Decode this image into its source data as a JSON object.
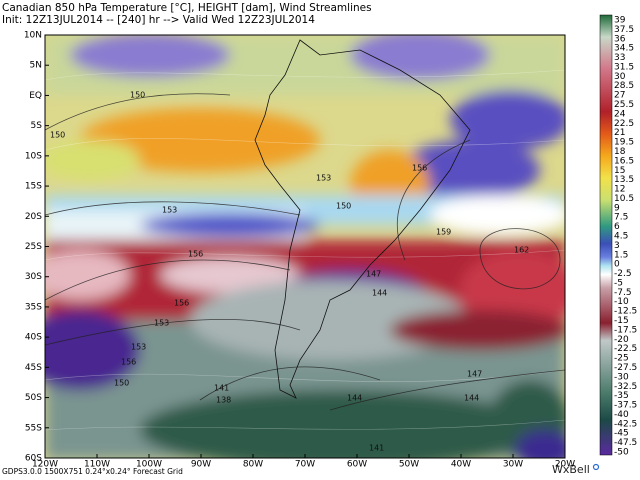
{
  "header": {
    "line1": "Canadian 850 hPa Temperature [°C], HEIGHT [dam], Wind Streamlines",
    "line2": "Init: 12Z13JUL2014 -- [240] hr --> Valid Wed 12Z23JUL2014"
  },
  "latitude_labels": [
    "10N",
    "5N",
    "EQ",
    "5S",
    "10S",
    "15S",
    "20S",
    "25S",
    "30S",
    "35S",
    "40S",
    "45S",
    "50S",
    "55S",
    "60S"
  ],
  "longitude_labels": [
    "120W",
    "110W",
    "100W",
    "90W",
    "80W",
    "70W",
    "60W",
    "50W",
    "40W",
    "30W",
    "20W"
  ],
  "colorbar_labels": [
    "39",
    "37.5",
    "36",
    "34.5",
    "33",
    "31.5",
    "30",
    "28.5",
    "27",
    "25.5",
    "24",
    "22.5",
    "21",
    "19.5",
    "18",
    "16.5",
    "15",
    "13.5",
    "12",
    "10.5",
    "9",
    "7.5",
    "6",
    "4.5",
    "3",
    "1.5",
    "0",
    "-2.5",
    "-5",
    "-7.5",
    "-10",
    "-12.5",
    "-15",
    "-17.5",
    "-20",
    "-22.5",
    "-25",
    "-27.5",
    "-30",
    "-32.5",
    "-35",
    "-37.5",
    "-40",
    "-42.5",
    "-45",
    "-47.5",
    "-50"
  ],
  "contour_labels": [
    "150",
    "150",
    "156",
    "153",
    "153",
    "150",
    "159",
    "162",
    "156",
    "147",
    "144",
    "156",
    "153",
    "153",
    "156",
    "150",
    "141",
    "138",
    "144",
    "147",
    "144",
    "141"
  ],
  "footer": "GDPS3.0.0 1500X751 0.24°x0.24° Forecast Grid",
  "logo": "WxBell"
}
